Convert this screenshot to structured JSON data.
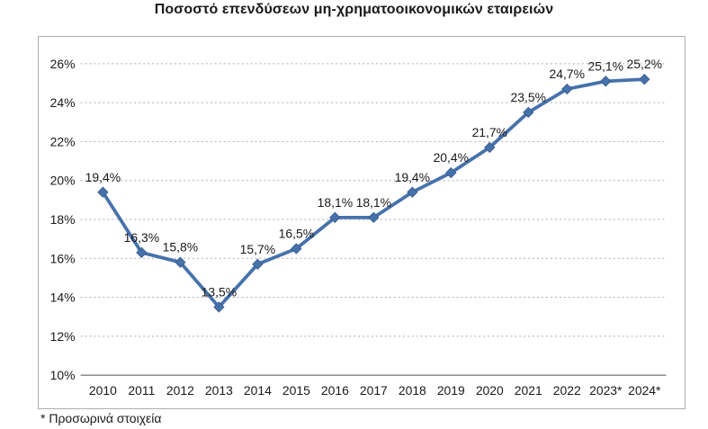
{
  "title": "Ποσοστό επενδύσεων μη-χρηματοοικονομικών εταιρειών",
  "footnote": "* Προσωρινά στοιχεία",
  "chart_data": {
    "type": "line",
    "title": "Ποσοστό επενδύσεων μη-χρηματοοικονομικών εταιρειών",
    "categories": [
      "2010",
      "2011",
      "2012",
      "2013",
      "2014",
      "2015",
      "2016",
      "2017",
      "2018",
      "2019",
      "2020",
      "2021",
      "2022",
      "2023*",
      "2024*"
    ],
    "values": [
      19.4,
      16.3,
      15.8,
      13.5,
      15.7,
      16.5,
      18.1,
      18.1,
      19.4,
      20.4,
      21.7,
      23.5,
      24.7,
      25.1,
      25.2
    ],
    "point_labels": [
      "19,4%",
      "16,3%",
      "15,8%",
      "13,5%",
      "15,7%",
      "16,5%",
      "18,1%",
      "18,1%",
      "19,4%",
      "20,4%",
      "21,7%",
      "23,5%",
      "24,7%",
      "25,1%",
      "25,2%"
    ],
    "xlabel": "",
    "ylabel": "",
    "ylim": [
      10,
      26
    ],
    "ytick_step": 2,
    "ytick_suffix": "%",
    "grid": "horizontal-dotted",
    "legend": "none",
    "marker": "diamond",
    "series_color": "#4672ac",
    "footnote": "* Προσωρινά στοιχεία"
  }
}
